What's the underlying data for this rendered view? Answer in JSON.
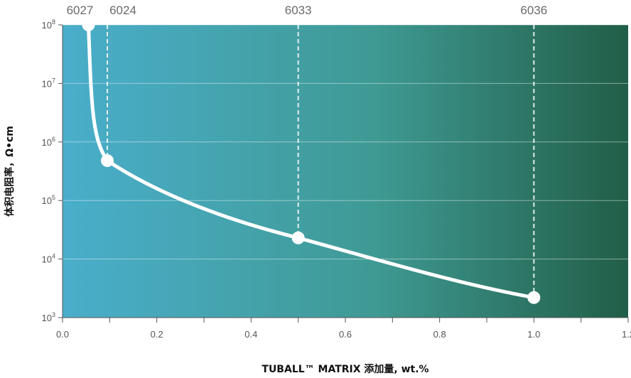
{
  "chart_data": {
    "type": "line",
    "title": "",
    "xlabel": "TUBALL™ MATRIX 添加量, wt.%",
    "ylabel": "体积电阻率，Ω•cm",
    "y_scale": "log",
    "xlim": [
      0.0,
      1.2
    ],
    "ylim": [
      1000,
      100000000
    ],
    "grid": "horizontal",
    "background": {
      "gradient": [
        "#4aaecb",
        "#3f9a94",
        "#215e47"
      ]
    },
    "line_color": "#ffffff",
    "x_ticks": [
      "0.0",
      "0.2",
      "0.4",
      "0.6",
      "0.8",
      "1.0",
      "1.2"
    ],
    "y_ticks": [
      {
        "value": 1000,
        "base": "10",
        "exp": "3"
      },
      {
        "value": 10000,
        "base": "10",
        "exp": "4"
      },
      {
        "value": 100000,
        "base": "10",
        "exp": "5"
      },
      {
        "value": 1000000,
        "base": "10",
        "exp": "6"
      },
      {
        "value": 10000000,
        "base": "10",
        "exp": "7"
      },
      {
        "value": 100000000,
        "base": "10",
        "exp": "8"
      }
    ],
    "points": [
      {
        "label": "6027",
        "x": 0.055,
        "y": 100000000
      },
      {
        "label": "6024",
        "x": 0.095,
        "y": 480000
      },
      {
        "label": "6033",
        "x": 0.5,
        "y": 23000
      },
      {
        "label": "6036",
        "x": 1.0,
        "y": 2200
      }
    ]
  }
}
